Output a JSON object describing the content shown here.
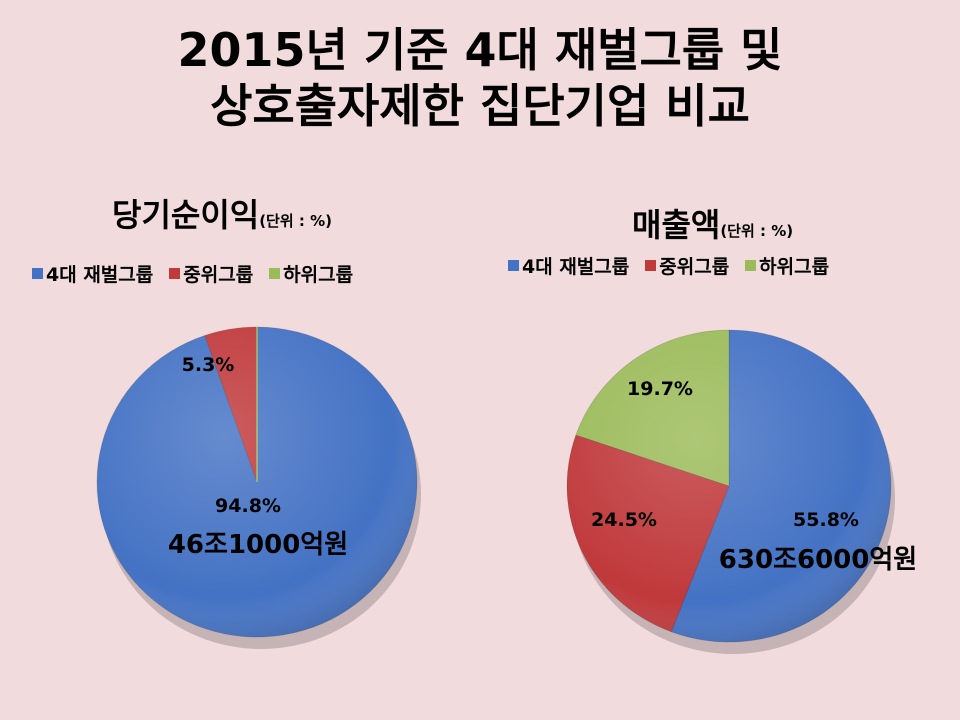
{
  "title": {
    "line1": "2015년 기준 4대 재벌그룹 및",
    "line2": "상호출자제한 집단기업 비교"
  },
  "colors": {
    "blue": "#4472c4",
    "red": "#c0393b",
    "green": "#9bbb59"
  },
  "chart_data": [
    {
      "type": "pie",
      "title": "당기순이익",
      "unit": "(단위 : %)",
      "legend": [
        "4대 재벌그룹",
        "중위그룹",
        "하위그룹"
      ],
      "legend_position": "top",
      "slices": [
        {
          "label": "4대 재벌그룹",
          "value": 94.8,
          "display": "94.8%"
        },
        {
          "label": "중위그룹",
          "value": 5.3,
          "display": "5.3%"
        },
        {
          "label": "하위그룹",
          "value": 0.0,
          "display": ""
        }
      ],
      "annotation": "46조1000억원"
    },
    {
      "type": "pie",
      "title": "매출액",
      "unit": "(단위 : %)",
      "legend": [
        "4대 재벌그룹",
        "중위그룹",
        "하위그룹"
      ],
      "legend_position": "top",
      "slices": [
        {
          "label": "4대 재벌그룹",
          "value": 55.8,
          "display": "55.8%"
        },
        {
          "label": "중위그룹",
          "value": 24.5,
          "display": "24.5%"
        },
        {
          "label": "하위그룹",
          "value": 19.7,
          "display": "19.7%"
        }
      ],
      "annotation": "630조6000억원"
    }
  ]
}
